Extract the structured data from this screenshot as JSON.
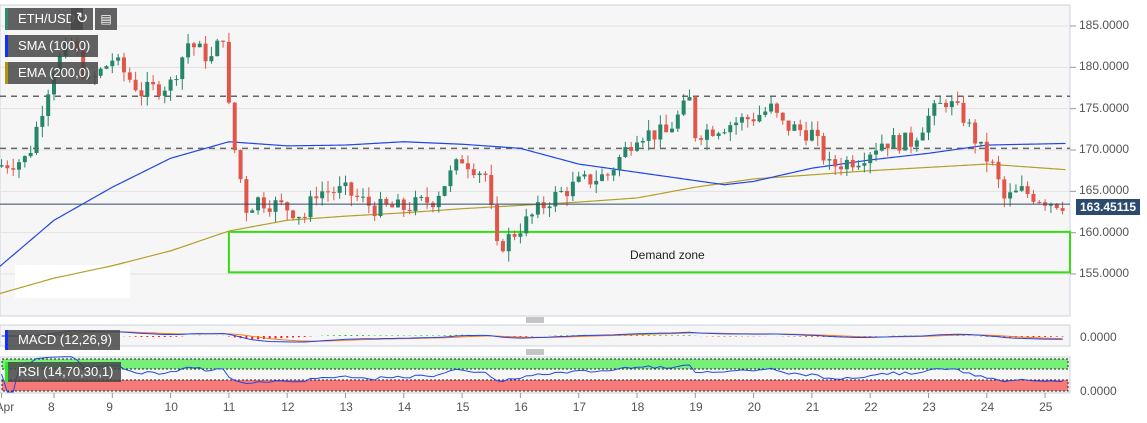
{
  "header": {
    "symbol": "ETH/USD",
    "refresh_icon": "refresh-icon",
    "calendar_icon": "calendar-icon"
  },
  "indicators": {
    "sma": "SMA (100,0)",
    "ema": "EMA (200,0)",
    "macd": "MACD (12,26,9)",
    "rsi": "RSI (14,70,30,1)"
  },
  "colors": {
    "up": "#26866a",
    "down": "#e0574a",
    "sma": "#2146e8",
    "ema": "#b3a02a",
    "zone": "#33dd11",
    "price": "#2c4a6e"
  },
  "chart_data": {
    "type": "candlestick",
    "title": "ETH/USD",
    "ylim": [
      151,
      187
    ],
    "yticks": [
      "185.0000",
      "180.0000",
      "175.0000",
      "170.0000",
      "165.0000",
      "160.0000",
      "155.0000"
    ],
    "ytick_values": [
      185,
      180,
      175,
      170,
      165,
      160,
      155
    ],
    "xticks": [
      "Apr",
      "8",
      "9",
      "10",
      "11",
      "12",
      "13",
      "14",
      "15",
      "16",
      "17",
      "18",
      "19",
      "20",
      "21",
      "22",
      "23",
      "24",
      "25"
    ],
    "xtick_days": [
      7.1,
      8,
      9,
      10,
      11,
      12,
      13,
      14,
      15,
      16,
      17,
      18,
      19,
      20,
      21,
      22,
      23,
      24,
      25
    ],
    "last_price": "163.45115",
    "last_value": 163.45115,
    "price_path": [
      [
        7.0,
        168
      ],
      [
        7.55,
        169
      ],
      [
        8.0,
        180
      ],
      [
        8.3,
        183
      ],
      [
        8.6,
        178
      ],
      [
        9.0,
        181
      ],
      [
        9.5,
        177
      ],
      [
        10.0,
        178
      ],
      [
        10.3,
        183
      ],
      [
        10.7,
        181
      ],
      [
        10.9,
        184
      ],
      [
        11.0,
        175
      ],
      [
        11.1,
        170
      ],
      [
        11.3,
        163
      ],
      [
        11.5,
        164
      ],
      [
        12.0,
        163
      ],
      [
        12.3,
        162
      ],
      [
        12.5,
        165
      ],
      [
        13.0,
        165
      ],
      [
        13.5,
        163
      ],
      [
        14.0,
        163
      ],
      [
        14.5,
        164
      ],
      [
        15.0,
        169
      ],
      [
        15.4,
        167
      ],
      [
        15.6,
        158
      ],
      [
        15.9,
        160
      ],
      [
        16.5,
        164
      ],
      [
        17.0,
        166
      ],
      [
        17.5,
        167
      ],
      [
        18.0,
        172
      ],
      [
        18.5,
        172
      ],
      [
        18.9,
        176
      ],
      [
        19.0,
        172
      ],
      [
        19.5,
        173
      ],
      [
        20.0,
        174
      ],
      [
        20.3,
        175
      ],
      [
        20.5,
        173
      ],
      [
        21.0,
        172
      ],
      [
        21.3,
        168
      ],
      [
        21.8,
        169
      ],
      [
        22.2,
        171
      ],
      [
        22.7,
        171
      ],
      [
        23.0,
        174
      ],
      [
        23.3,
        176
      ],
      [
        23.6,
        174
      ],
      [
        23.9,
        170
      ],
      [
        24.1,
        168
      ],
      [
        24.3,
        164
      ],
      [
        24.6,
        165
      ],
      [
        25.0,
        164
      ],
      [
        25.35,
        163.45
      ]
    ],
    "sma_path": [
      [
        7.0,
        155.5
      ],
      [
        8,
        161.5
      ],
      [
        9,
        165.5
      ],
      [
        10,
        169
      ],
      [
        11,
        171
      ],
      [
        12,
        170.5
      ],
      [
        13,
        170.6
      ],
      [
        14,
        171
      ],
      [
        15,
        170.7
      ],
      [
        16,
        170.2
      ],
      [
        17,
        168.3
      ],
      [
        18,
        167.3
      ],
      [
        19,
        166.3
      ],
      [
        19.5,
        165.8
      ],
      [
        20,
        166.2
      ],
      [
        21,
        167.8
      ],
      [
        22,
        168.8
      ],
      [
        23,
        169.6
      ],
      [
        24,
        170.6
      ],
      [
        25.4,
        170.8
      ]
    ],
    "ema_path": [
      [
        7.0,
        152.5
      ],
      [
        8,
        154.5
      ],
      [
        9,
        156
      ],
      [
        10,
        157.8
      ],
      [
        11,
        160.2
      ],
      [
        12,
        161.5
      ],
      [
        13,
        162
      ],
      [
        14,
        162.4
      ],
      [
        15,
        162.9
      ],
      [
        16,
        163.3
      ],
      [
        17,
        163.7
      ],
      [
        18,
        164.2
      ],
      [
        19,
        165.5
      ],
      [
        20,
        166.5
      ],
      [
        21,
        167
      ],
      [
        22,
        167.5
      ],
      [
        23,
        167.9
      ],
      [
        24,
        168.3
      ],
      [
        25.4,
        167.6
      ]
    ],
    "resistance_levels": [
      176.5,
      170.2
    ],
    "demand_zone": {
      "label": "Demand zone",
      "low": 155.2,
      "high": 160.1,
      "start_day": 11.0
    },
    "macd_tick": "0.0000",
    "rsi_tick": "0.0000"
  }
}
